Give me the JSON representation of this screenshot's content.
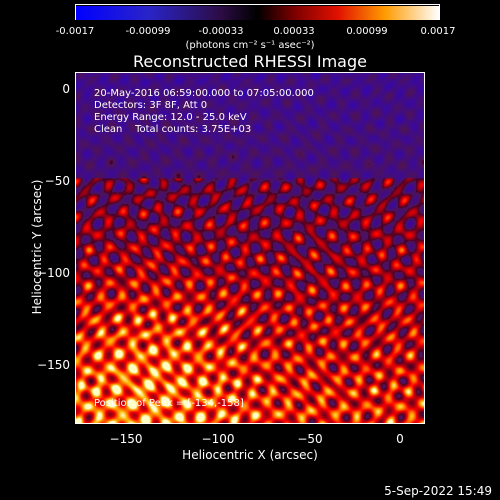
{
  "colorbar": {
    "ticks": [
      "-0.0017",
      "-0.00099",
      "-0.00033",
      "0.00033",
      "0.00099",
      "0.0017"
    ],
    "units": "(photons cm⁻² s⁻¹ asec⁻²)"
  },
  "title": "Reconstructed RHESSI Image",
  "info": {
    "time": "20-May-2016 06:59:00.000 to 07:05:00.000",
    "detectors": "Detectors: 3F 8F, Att 0",
    "energy": "Energy Range: 12.0 - 25.0 keV",
    "clean": "Clean    Total counts: 3.75E+03"
  },
  "peak_label": "Position of Peak = [-134,-158]",
  "axes": {
    "xlabel": "Heliocentric X (arcsec)",
    "ylabel": "Heliocentric Y (arcsec)",
    "xticks": [
      "−150",
      "−100",
      "−50",
      "0"
    ],
    "yticks": [
      "0",
      "−50",
      "−100",
      "−150"
    ]
  },
  "datestamp": "5-Sep-2022 15:49",
  "colors": {
    "background": "#000000",
    "text": "#ffffff"
  }
}
